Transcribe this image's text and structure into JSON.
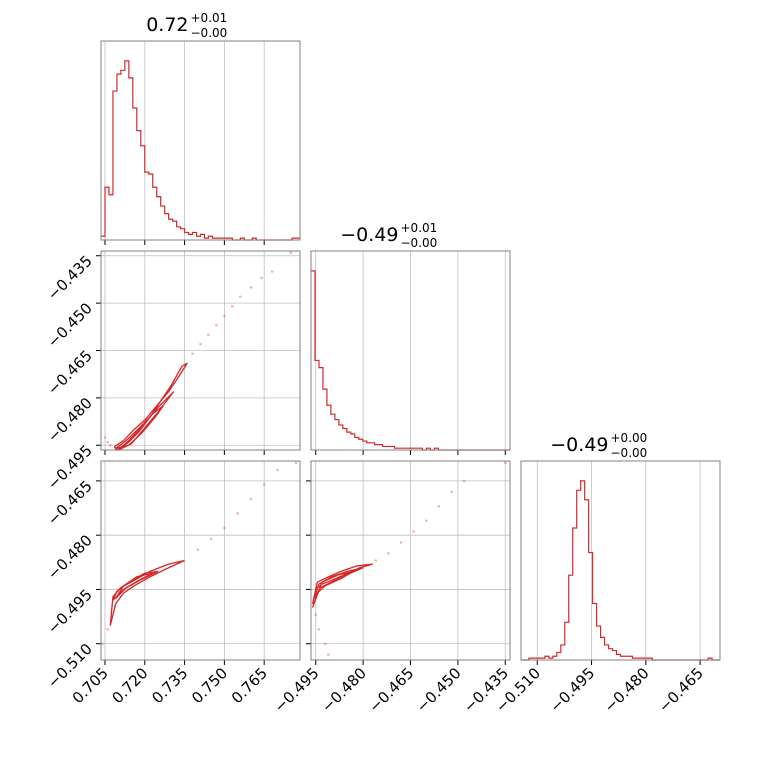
{
  "colors": {
    "series": "#d62728",
    "grid": "#bfbfbf",
    "frame": "#808080"
  },
  "chart_data": {
    "type": "corner",
    "parameters": [
      {
        "title": {
          "main": "0.72",
          "plus": "+0.01",
          "minus": "−0.00"
        },
        "range": [
          0.7035,
          0.7785
        ],
        "ticks": [
          0.705,
          0.72,
          0.735,
          0.75,
          0.765
        ],
        "tick_labels": [
          "0.705",
          "0.720",
          "0.735",
          "0.750",
          "0.765"
        ],
        "hist": {
          "edges_start": 0.7035,
          "bin_width": 0.0015,
          "counts": [
            2,
            28,
            24,
            79,
            88,
            90,
            95,
            86,
            70,
            58,
            50,
            36,
            35,
            28,
            23,
            18,
            14,
            11,
            10,
            7,
            6,
            4,
            3,
            4,
            2,
            3,
            1,
            2,
            1,
            1,
            1,
            1,
            1,
            0,
            0,
            1,
            0,
            0,
            1,
            0,
            0,
            0,
            0,
            0,
            0,
            0,
            0,
            0,
            1,
            1
          ]
        }
      },
      {
        "title": {
          "main": "−0.49",
          "plus": "+0.01",
          "minus": "−0.00"
        },
        "range": [
          -0.4965,
          -0.4335
        ],
        "ticks": [
          -0.495,
          -0.48,
          -0.465,
          -0.45,
          -0.435
        ],
        "tick_labels": [
          "−0.495",
          "−0.480",
          "−0.465",
          "−0.450",
          "−0.435"
        ],
        "hist": {
          "edges_start": -0.4965,
          "bin_width": 0.00126,
          "counts": [
            100,
            50,
            46,
            34,
            25,
            20,
            17,
            14,
            12,
            10,
            9,
            7,
            6,
            5,
            4,
            4,
            3,
            3,
            2,
            2,
            2,
            1,
            1,
            1,
            1,
            1,
            1,
            1,
            0,
            1,
            0,
            1,
            0,
            0,
            0,
            0,
            0,
            0,
            0,
            0,
            0,
            0,
            0,
            0,
            0,
            0,
            0,
            0,
            0,
            0
          ]
        }
      },
      {
        "title": {
          "main": "−0.49",
          "plus": "+0.00",
          "minus": "−0.00"
        },
        "range": [
          -0.5145,
          -0.4595
        ],
        "ticks": [
          -0.51,
          -0.495,
          -0.48,
          -0.465
        ],
        "tick_labels": [
          "−0.510",
          "−0.495",
          "−0.480",
          "−0.465"
        ],
        "hist": {
          "edges_start": -0.5145,
          "bin_width": 0.0011,
          "counts": [
            0,
            0,
            1,
            1,
            1,
            1,
            2,
            1,
            2,
            4,
            8,
            20,
            45,
            70,
            90,
            95,
            85,
            57,
            30,
            18,
            12,
            8,
            6,
            5,
            3,
            2,
            2,
            2,
            1,
            1,
            1,
            1,
            1,
            0,
            0,
            0,
            0,
            0,
            0,
            0,
            0,
            0,
            0,
            0,
            0,
            0,
            0,
            1,
            0,
            0
          ]
        }
      }
    ],
    "pairs": [
      {
        "x_param": 0,
        "y_param": 1,
        "contours": [
          [
            [
              0.7085,
              -0.4955
            ],
            [
              0.712,
              -0.4935
            ],
            [
              0.716,
              -0.49
            ],
            [
              0.72,
              -0.487
            ],
            [
              0.724,
              -0.483
            ],
            [
              0.729,
              -0.478
            ],
            [
              0.733,
              -0.473
            ],
            [
              0.736,
              -0.469
            ],
            [
              0.734,
              -0.47
            ],
            [
              0.73,
              -0.476
            ],
            [
              0.726,
              -0.481
            ],
            [
              0.722,
              -0.486
            ],
            [
              0.718,
              -0.4905
            ],
            [
              0.714,
              -0.494
            ],
            [
              0.7095,
              -0.4965
            ],
            [
              0.7085,
              -0.4955
            ]
          ],
          [
            [
              0.71,
              -0.4965
            ],
            [
              0.715,
              -0.4945
            ],
            [
              0.72,
              -0.4895
            ],
            [
              0.725,
              -0.4845
            ],
            [
              0.73,
              -0.479
            ],
            [
              0.731,
              -0.478
            ],
            [
              0.725,
              -0.483
            ],
            [
              0.719,
              -0.489
            ],
            [
              0.714,
              -0.4935
            ],
            [
              0.71,
              -0.4965
            ]
          ],
          [
            [
              0.709,
              -0.496
            ],
            [
              0.714,
              -0.495
            ],
            [
              0.719,
              -0.491
            ],
            [
              0.724,
              -0.486
            ],
            [
              0.727,
              -0.4825
            ],
            [
              0.723,
              -0.485
            ],
            [
              0.718,
              -0.4895
            ],
            [
              0.713,
              -0.4935
            ],
            [
              0.709,
              -0.496
            ]
          ]
        ],
        "points": [
          [
            0.705,
            -0.4925
          ],
          [
            0.706,
            -0.494
          ],
          [
            0.707,
            -0.495
          ],
          [
            0.738,
            -0.466
          ],
          [
            0.741,
            -0.463
          ],
          [
            0.744,
            -0.46
          ],
          [
            0.747,
            -0.457
          ],
          [
            0.75,
            -0.454
          ],
          [
            0.753,
            -0.451
          ],
          [
            0.756,
            -0.448
          ],
          [
            0.76,
            -0.445
          ],
          [
            0.764,
            -0.442
          ],
          [
            0.768,
            -0.44
          ],
          [
            0.775,
            -0.434
          ]
        ]
      },
      {
        "x_param": 0,
        "y_param": 2,
        "contours": [
          [
            [
              0.707,
              -0.505
            ],
            [
              0.709,
              -0.499
            ],
            [
              0.712,
              -0.496
            ],
            [
              0.716,
              -0.494
            ],
            [
              0.722,
              -0.4915
            ],
            [
              0.729,
              -0.489
            ],
            [
              0.735,
              -0.487
            ],
            [
              0.729,
              -0.488
            ],
            [
              0.722,
              -0.49
            ],
            [
              0.716,
              -0.4925
            ],
            [
              0.711,
              -0.4945
            ],
            [
              0.708,
              -0.497
            ],
            [
              0.707,
              -0.505
            ]
          ],
          [
            [
              0.708,
              -0.498
            ],
            [
              0.712,
              -0.495
            ],
            [
              0.718,
              -0.4925
            ],
            [
              0.725,
              -0.49
            ],
            [
              0.72,
              -0.4905
            ],
            [
              0.714,
              -0.493
            ],
            [
              0.7095,
              -0.4955
            ],
            [
              0.708,
              -0.498
            ]
          ],
          [
            [
              0.709,
              -0.4975
            ],
            [
              0.713,
              -0.4945
            ],
            [
              0.719,
              -0.492
            ],
            [
              0.723,
              -0.4905
            ],
            [
              0.717,
              -0.4915
            ],
            [
              0.712,
              -0.494
            ],
            [
              0.709,
              -0.4975
            ]
          ]
        ],
        "points": [
          [
            0.704,
            -0.51
          ],
          [
            0.706,
            -0.506
          ],
          [
            0.74,
            -0.484
          ],
          [
            0.745,
            -0.481
          ],
          [
            0.75,
            -0.478
          ],
          [
            0.755,
            -0.474
          ],
          [
            0.76,
            -0.47
          ],
          [
            0.765,
            -0.466
          ],
          [
            0.77,
            -0.462
          ],
          [
            0.777,
            -0.46
          ]
        ]
      },
      {
        "x_param": 1,
        "y_param": 2,
        "contours": [
          [
            [
              -0.496,
              -0.499
            ],
            [
              -0.495,
              -0.495
            ],
            [
              -0.493,
              -0.4935
            ],
            [
              -0.49,
              -0.4925
            ],
            [
              -0.486,
              -0.491
            ],
            [
              -0.481,
              -0.489
            ],
            [
              -0.477,
              -0.488
            ],
            [
              -0.482,
              -0.4885
            ],
            [
              -0.487,
              -0.49
            ],
            [
              -0.491,
              -0.4915
            ],
            [
              -0.4945,
              -0.493
            ],
            [
              -0.496,
              -0.499
            ]
          ],
          [
            [
              -0.4955,
              -0.4975
            ],
            [
              -0.4935,
              -0.4945
            ],
            [
              -0.489,
              -0.4925
            ],
            [
              -0.484,
              -0.4905
            ],
            [
              -0.48,
              -0.489
            ],
            [
              -0.485,
              -0.49
            ],
            [
              -0.49,
              -0.4915
            ],
            [
              -0.494,
              -0.4935
            ],
            [
              -0.4955,
              -0.4975
            ]
          ],
          [
            [
              -0.496,
              -0.5
            ],
            [
              -0.4945,
              -0.496
            ],
            [
              -0.492,
              -0.494
            ],
            [
              -0.487,
              -0.492
            ],
            [
              -0.483,
              -0.49
            ],
            [
              -0.488,
              -0.491
            ],
            [
              -0.493,
              -0.493
            ],
            [
              -0.496,
              -0.5
            ]
          ]
        ],
        "points": [
          [
            -0.495,
            -0.502
          ],
          [
            -0.494,
            -0.506
          ],
          [
            -0.492,
            -0.51
          ],
          [
            -0.491,
            -0.513
          ],
          [
            -0.476,
            -0.487
          ],
          [
            -0.472,
            -0.485
          ],
          [
            -0.468,
            -0.482
          ],
          [
            -0.464,
            -0.479
          ],
          [
            -0.46,
            -0.476
          ],
          [
            -0.456,
            -0.472
          ],
          [
            -0.452,
            -0.468
          ],
          [
            -0.448,
            -0.465
          ],
          [
            -0.435,
            -0.46
          ]
        ]
      }
    ]
  }
}
